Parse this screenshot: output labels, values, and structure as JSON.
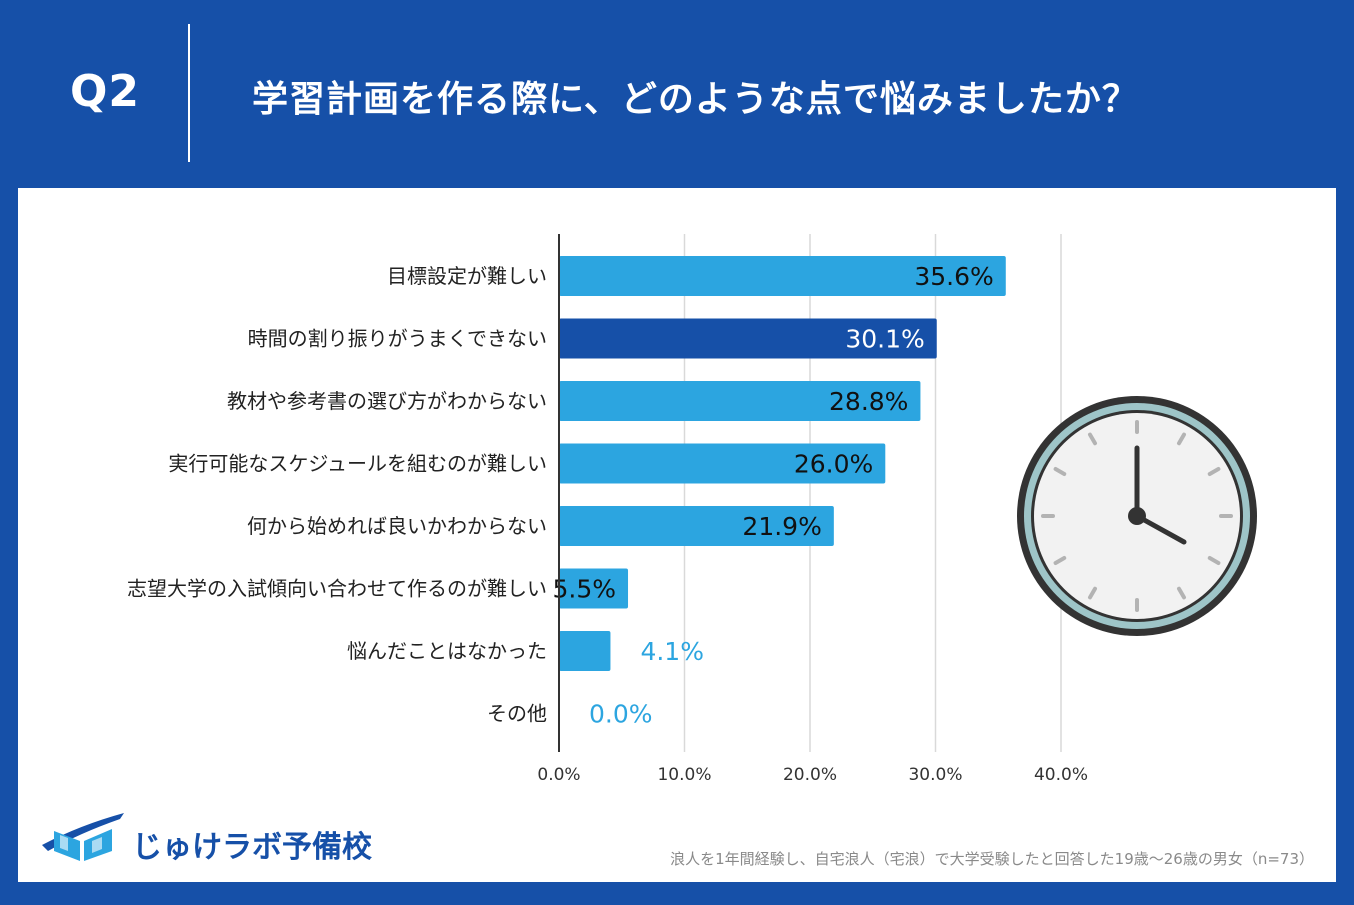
{
  "header": {
    "q_label": "Q2",
    "question": "学習計画を作る際に、どのような点で悩みましたか？"
  },
  "colors": {
    "background": "#1650a8",
    "bar": "#2ca5e0",
    "bar_highlight": "#1650a8",
    "grid": "#d9d9d9",
    "axis": "#333333",
    "label_outside": "#2ca5e0",
    "clock_ring": "#333333",
    "clock_inner_ring": "#9ec5c8",
    "clock_face": "#f2f2f2"
  },
  "chart_data": {
    "type": "bar",
    "orientation": "horizontal",
    "categories": [
      "目標設定が難しい",
      "時間の割り振りがうまくできない",
      "教材や参考書の選び方がわからない",
      "実行可能なスケジュールを組むのが難しい",
      "何から始めれば良いかわからない",
      "志望大学の入試傾向い合わせて作るのが難しい",
      "悩んだことはなかった",
      "その他"
    ],
    "values": [
      35.6,
      30.1,
      28.8,
      26.0,
      21.9,
      5.5,
      4.1,
      0.0
    ],
    "value_labels": [
      "35.6%",
      "30.1%",
      "28.8%",
      "26.0%",
      "21.9%",
      "5.5%",
      "4.1%",
      "0.0%"
    ],
    "highlight_index": 1,
    "xlim": [
      0,
      40
    ],
    "x_ticks": [
      0,
      10,
      20,
      30,
      40
    ],
    "x_tick_labels": [
      "0.0%",
      "10.0%",
      "20.0%",
      "30.0%",
      "40.0%"
    ],
    "grid": true
  },
  "logo": {
    "text": "じゅけラボ予備校",
    "icon": "book-icon"
  },
  "footnote": "浪人を1年間経験し、自宅浪人（宅浪）で大学受験したと回答した19歳～26歳の男女（n=73）"
}
